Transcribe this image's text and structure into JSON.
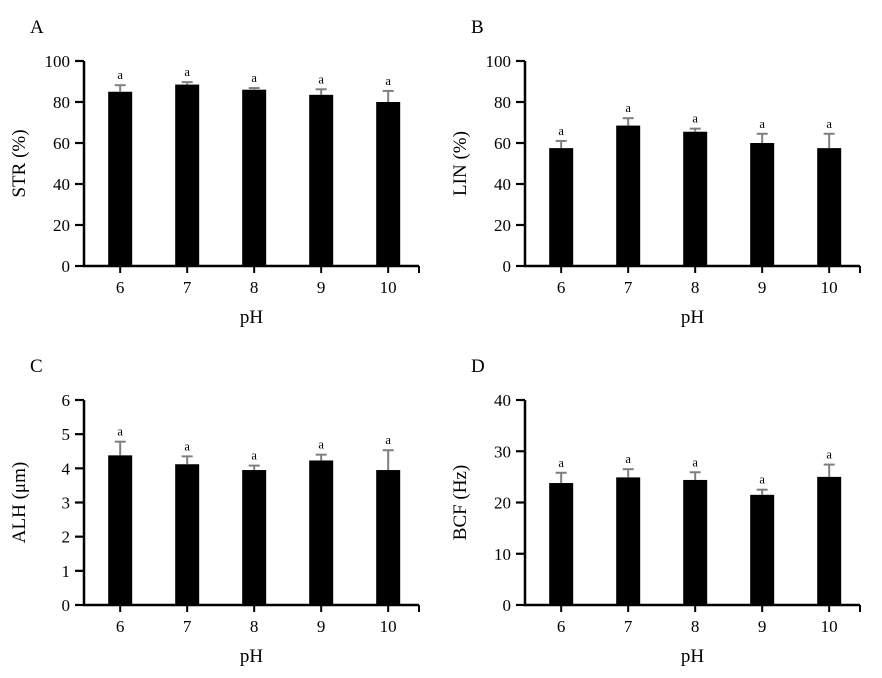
{
  "figure_caption": "",
  "x_axis_label_shared": "pH",
  "significance_note_letter": "a",
  "colors": {
    "bar": "#000000",
    "error_bar": "#7f7f7f",
    "axis": "#000000",
    "background": "#ffffff"
  },
  "chart_data": [
    {
      "type": "bar",
      "panel": "A",
      "title": "",
      "ylabel": "STR (%)",
      "xlabel": "pH",
      "categories": [
        "6",
        "7",
        "8",
        "9",
        "10"
      ],
      "values": [
        85,
        88.5,
        86,
        83.5,
        80
      ],
      "errors": [
        3.2,
        1.2,
        0.8,
        2.7,
        5.4
      ],
      "sig_labels": [
        "a",
        "a",
        "a",
        "a",
        "a"
      ],
      "ylim": [
        0,
        100
      ],
      "yticks": [
        0,
        20,
        40,
        60,
        80,
        100
      ],
      "grid": false,
      "legend": "none"
    },
    {
      "type": "bar",
      "panel": "B",
      "title": "",
      "ylabel": "LIN (%)",
      "xlabel": "pH",
      "categories": [
        "6",
        "7",
        "8",
        "9",
        "10"
      ],
      "values": [
        57.5,
        68.5,
        65.5,
        60,
        57.5
      ],
      "errors": [
        3.5,
        3.6,
        1.5,
        4.5,
        7
      ],
      "sig_labels": [
        "a",
        "a",
        "a",
        "a",
        "a"
      ],
      "ylim": [
        0,
        100
      ],
      "yticks": [
        0,
        20,
        40,
        60,
        80,
        100
      ],
      "grid": false,
      "legend": "none"
    },
    {
      "type": "bar",
      "panel": "C",
      "title": "",
      "ylabel": "ALH (μm)",
      "xlabel": "pH",
      "categories": [
        "6",
        "7",
        "8",
        "9",
        "10"
      ],
      "values": [
        4.38,
        4.12,
        3.95,
        4.23,
        3.95
      ],
      "errors": [
        0.4,
        0.23,
        0.13,
        0.17,
        0.58
      ],
      "sig_labels": [
        "a",
        "a",
        "a",
        "a",
        "a"
      ],
      "ylim": [
        0,
        6
      ],
      "yticks": [
        0,
        1,
        2,
        3,
        4,
        5,
        6
      ],
      "grid": false,
      "legend": "none"
    },
    {
      "type": "bar",
      "panel": "D",
      "title": "",
      "ylabel": "BCF (Hz)",
      "xlabel": "pH",
      "categories": [
        "6",
        "7",
        "8",
        "9",
        "10"
      ],
      "values": [
        23.8,
        24.9,
        24.4,
        21.5,
        25
      ],
      "errors": [
        2,
        1.6,
        1.5,
        1,
        2.4
      ],
      "sig_labels": [
        "a",
        "a",
        "a",
        "a",
        "a"
      ],
      "ylim": [
        0,
        40
      ],
      "yticks": [
        0,
        10,
        20,
        30,
        40
      ],
      "grid": false,
      "legend": "none"
    }
  ]
}
